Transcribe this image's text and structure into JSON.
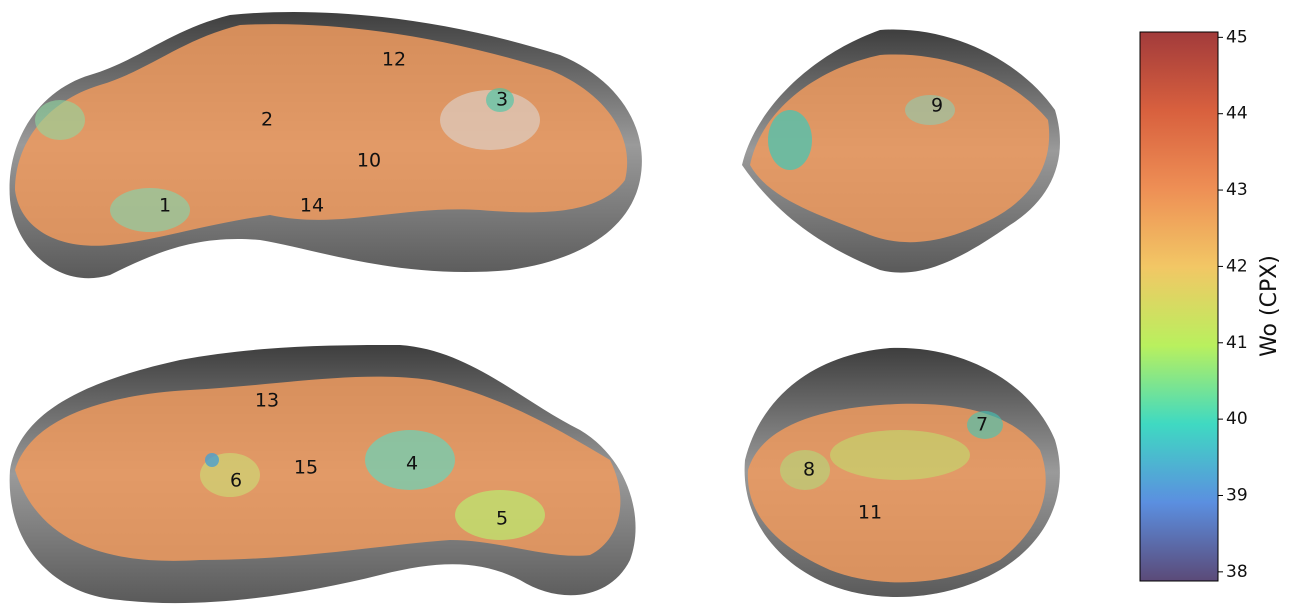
{
  "colorbar": {
    "label": "Wo (CPX)",
    "lim": [
      37.88,
      45.07
    ],
    "ticks": [
      38,
      39,
      40,
      41,
      42,
      43,
      44,
      45
    ],
    "colors": [
      "#5b4a78",
      "#5b8fe0",
      "#3fd9c2",
      "#b9f05e",
      "#f2c765",
      "#ee8f55",
      "#d8603e",
      "#a23b3b"
    ]
  },
  "views": [
    {
      "labels": [
        "1",
        "2",
        "3",
        "10",
        "12",
        "14"
      ]
    },
    {
      "labels": [
        "9"
      ]
    },
    {
      "labels": [
        "4",
        "5",
        "6",
        "13",
        "15"
      ]
    },
    {
      "labels": [
        "7",
        "8",
        "11"
      ]
    }
  ]
}
